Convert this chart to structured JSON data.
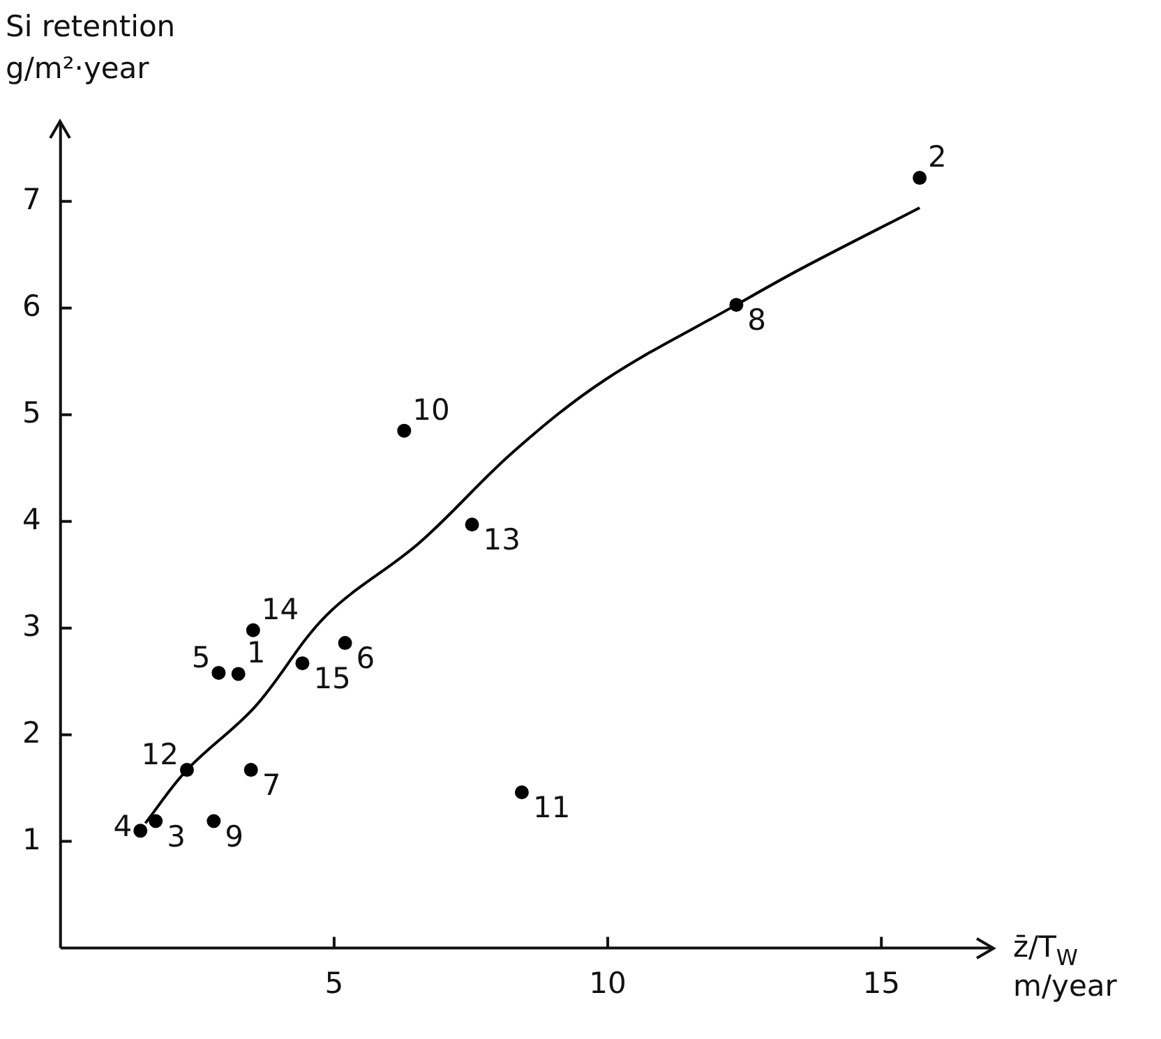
{
  "chart_data": {
    "type": "scatter",
    "xlabel": "z̄/T$_{W}$\nm/year",
    "ylabel": "Si retention\ng/m²·year",
    "xlim": [
      0,
      17.05
    ],
    "ylim": [
      0,
      7.75
    ],
    "xticks": [
      5,
      10,
      15
    ],
    "yticks": [
      1,
      2,
      3,
      4,
      5,
      6,
      7
    ],
    "grid": false,
    "legend": false,
    "series": [
      {
        "type": "scatter",
        "color": "#000000",
        "marker": "circle",
        "x": [
          3.25,
          15.7,
          1.74,
          1.46,
          2.89,
          5.2,
          3.48,
          12.35,
          2.8,
          6.28,
          8.43,
          2.31,
          7.52,
          3.52,
          4.42
        ],
        "values": [
          2.57,
          7.22,
          1.19,
          1.1,
          2.58,
          2.86,
          1.67,
          6.03,
          1.19,
          4.85,
          1.46,
          1.67,
          3.97,
          2.98,
          2.67
        ]
      },
      {
        "type": "line",
        "color": "#000000",
        "marker": "none",
        "line_style": "solid",
        "x": [
          1.55,
          2.31,
          3.55,
          4.86,
          6.56,
          8.27,
          9.96,
          12.35,
          13.54,
          15.7
        ],
        "values": [
          1.17,
          1.67,
          2.26,
          3.12,
          3.8,
          4.65,
          5.33,
          6.03,
          6.37,
          6.94
        ]
      }
    ],
    "annotations": [
      {
        "text": "1",
        "x": 3.25,
        "y": 2.57
      },
      {
        "text": "2",
        "x": 15.7,
        "y": 7.22
      },
      {
        "text": "3",
        "x": 1.74,
        "y": 1.19
      },
      {
        "text": "4",
        "x": 1.46,
        "y": 1.1
      },
      {
        "text": "5",
        "x": 2.89,
        "y": 2.58
      },
      {
        "text": "6",
        "x": 5.2,
        "y": 2.86
      },
      {
        "text": "7",
        "x": 3.48,
        "y": 1.67
      },
      {
        "text": "8",
        "x": 12.35,
        "y": 6.03
      },
      {
        "text": "9",
        "x": 2.8,
        "y": 1.19
      },
      {
        "text": "10",
        "x": 6.28,
        "y": 4.85
      },
      {
        "text": "11",
        "x": 8.43,
        "y": 1.46
      },
      {
        "text": "12",
        "x": 2.31,
        "y": 1.67
      },
      {
        "text": "13",
        "x": 7.52,
        "y": 3.97
      },
      {
        "text": "14",
        "x": 3.52,
        "y": 2.98
      },
      {
        "text": "15",
        "x": 4.42,
        "y": 2.67
      }
    ]
  }
}
